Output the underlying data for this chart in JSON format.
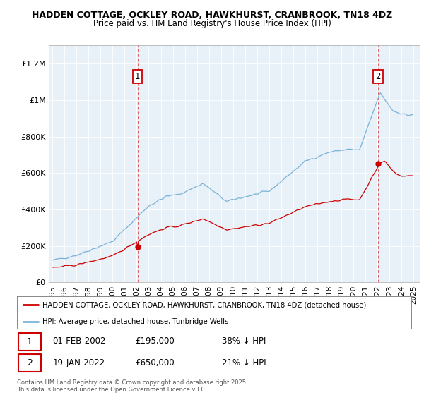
{
  "title": "HADDEN COTTAGE, OCKLEY ROAD, HAWKHURST, CRANBROOK, TN18 4DZ",
  "subtitle": "Price paid vs. HM Land Registry's House Price Index (HPI)",
  "sale1_date": "01-FEB-2002",
  "sale1_price": 195000,
  "sale1_label": "38% ↓ HPI",
  "sale1_year": 2002.08,
  "sale2_date": "19-JAN-2022",
  "sale2_price": 650000,
  "sale2_label": "21% ↓ HPI",
  "sale2_year": 2022.05,
  "hpi_color": "#7ab3d8",
  "price_color": "#cc0000",
  "vline_color": "#cc0000",
  "background_color": "#ffffff",
  "plot_bg_color": "#e8f0f8",
  "grid_color": "#ffffff",
  "legend_label_price": "HADDEN COTTAGE, OCKLEY ROAD, HAWKHURST, CRANBROOK, TN18 4DZ (detached house)",
  "legend_label_hpi": "HPI: Average price, detached house, Tunbridge Wells",
  "footnote": "Contains HM Land Registry data © Crown copyright and database right 2025.\nThis data is licensed under the Open Government Licence v3.0.",
  "ylim_max": 1300000,
  "yticks": [
    0,
    200000,
    400000,
    600000,
    800000,
    1000000,
    1200000
  ],
  "ytick_labels": [
    "£0",
    "£200K",
    "£400K",
    "£600K",
    "£800K",
    "£1M",
    "£1.2M"
  ],
  "xlim_min": 1994.7,
  "xlim_max": 2025.5
}
